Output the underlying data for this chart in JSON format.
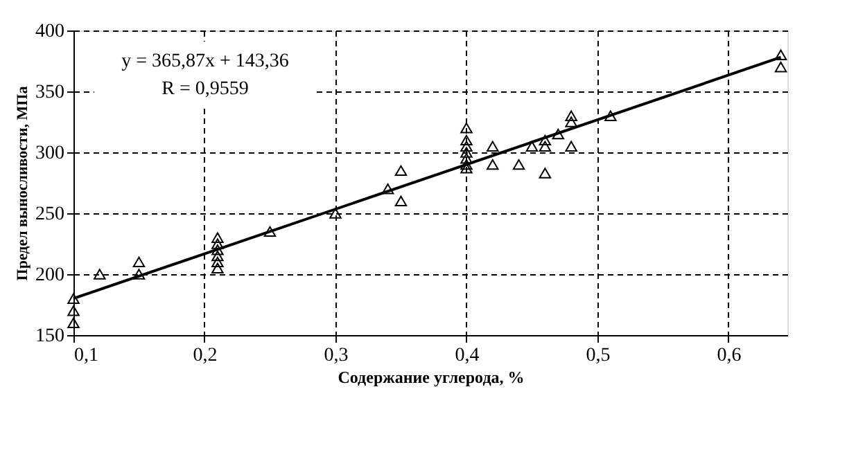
{
  "chart_data": {
    "type": "scatter",
    "xlabel": "Содержание углерода, %",
    "ylabel": "Предел выносливости, МПа",
    "xlim": [
      0.1,
      0.645
    ],
    "ylim": [
      150,
      400
    ],
    "xticks": [
      {
        "value": 0.1,
        "label": "0,1"
      },
      {
        "value": 0.2,
        "label": "0,2"
      },
      {
        "value": 0.3,
        "label": "0,3"
      },
      {
        "value": 0.4,
        "label": "0,4"
      },
      {
        "value": 0.5,
        "label": "0,5"
      },
      {
        "value": 0.6,
        "label": "0,6"
      }
    ],
    "yticks": [
      150,
      200,
      250,
      300,
      350,
      400
    ],
    "grid": true,
    "annotations": [
      "y = 365,87x + 143,36",
      "R = 0,9559"
    ],
    "series": [
      {
        "marker": "triangle",
        "color": "#000000",
        "x": [
          0.1,
          0.1,
          0.1,
          0.12,
          0.15,
          0.15,
          0.21,
          0.21,
          0.21,
          0.21,
          0.21,
          0.21,
          0.25,
          0.3,
          0.34,
          0.35,
          0.35,
          0.4,
          0.4,
          0.4,
          0.4,
          0.4,
          0.4,
          0.4,
          0.42,
          0.42,
          0.44,
          0.45,
          0.46,
          0.46,
          0.46,
          0.47,
          0.48,
          0.48,
          0.48,
          0.51,
          0.64,
          0.64
        ],
        "values": [
          180,
          170,
          160,
          200,
          210,
          200,
          230,
          225,
          220,
          215,
          210,
          205,
          235,
          250,
          270,
          285,
          260,
          320,
          310,
          305,
          300,
          295,
          290,
          287,
          305,
          290,
          290,
          305,
          305,
          310,
          283,
          315,
          330,
          325,
          305,
          330,
          380,
          370
        ]
      },
      {
        "type": "line",
        "color": "#000000",
        "x": [
          0.1,
          0.64
        ],
        "values": [
          180,
          378
        ]
      }
    ]
  }
}
